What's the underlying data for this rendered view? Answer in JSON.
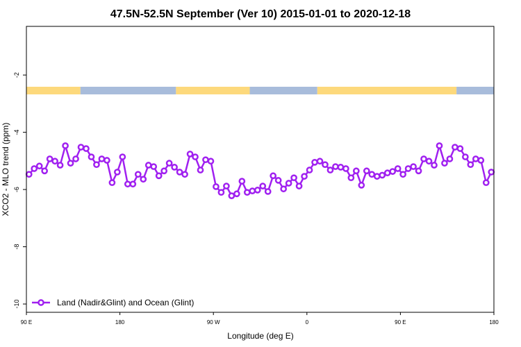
{
  "chart_data": {
    "type": "line",
    "title": "47.5N-52.5N September (Ver 10)   2015-01-01 to 2020-12-18",
    "x_label": "Longitude (deg E)",
    "y_label": "XCO2 - MLO trend (ppm)",
    "xlim": [
      90,
      540
    ],
    "ylim": [
      -10.29,
      -0.3
    ],
    "xticks": [
      {
        "value": 90,
        "label": "90 E"
      },
      {
        "value": 180,
        "label": "180"
      },
      {
        "value": 270,
        "label": "90 W"
      },
      {
        "value": 360,
        "label": "0"
      },
      {
        "value": 450,
        "label": "90 E"
      },
      {
        "value": 540,
        "label": "180"
      }
    ],
    "yticks": [
      -2,
      -4,
      -6,
      -8,
      -10
    ],
    "legend": "bottom-left",
    "surface_band": [
      {
        "from": 90,
        "to": 142,
        "color": "#fdd97c"
      },
      {
        "from": 142,
        "to": 234,
        "color": "#a8bcdb"
      },
      {
        "from": 234,
        "to": 305,
        "color": "#fdd97c"
      },
      {
        "from": 305,
        "to": 370,
        "color": "#a8bcdb"
      },
      {
        "from": 370,
        "to": 504,
        "color": "#fdd97c"
      },
      {
        "from": 504,
        "to": 540,
        "color": "#a8bcdb"
      }
    ],
    "x": [
      92.5,
      97.5,
      102.5,
      107.5,
      112.5,
      117.5,
      122.5,
      127.5,
      132.5,
      137.5,
      142.5,
      147.5,
      152.5,
      157.5,
      162.5,
      167.5,
      172.5,
      177.5,
      182.5,
      187.5,
      192.5,
      197.5,
      202.5,
      207.5,
      212.5,
      217.5,
      222.5,
      227.5,
      232.5,
      237.5,
      242.5,
      247.5,
      252.5,
      257.5,
      262.5,
      267.5,
      272.5,
      277.5,
      282.5,
      287.5,
      292.5,
      297.5,
      302.5,
      307.5,
      312.5,
      317.5,
      322.5,
      327.5,
      332.5,
      337.5,
      342.5,
      347.5,
      352.5,
      357.5,
      362.5,
      367.5,
      372.5,
      377.5,
      382.5,
      387.5,
      392.5,
      397.5,
      402.5,
      407.5,
      412.5,
      417.5,
      422.5,
      427.5,
      432.5,
      437.5,
      442.5,
      447.5,
      452.5,
      457.5,
      462.5,
      467.5,
      472.5,
      477.5,
      482.5,
      487.5,
      492.5,
      497.5,
      502.5,
      507.5,
      512.5,
      517.5,
      522.5,
      527.5,
      532.5,
      537.5
    ],
    "series": [
      {
        "name": "Land (Nadir&Glint) and Ocean (Glint)",
        "color": "#a020f0",
        "values": [
          -5.47,
          -5.27,
          -5.18,
          -5.35,
          -4.93,
          -5.01,
          -5.15,
          -4.47,
          -5.08,
          -4.93,
          -4.52,
          -4.57,
          -4.86,
          -5.13,
          -4.93,
          -4.98,
          -5.76,
          -5.39,
          -4.86,
          -5.81,
          -5.81,
          -5.47,
          -5.64,
          -5.15,
          -5.2,
          -5.52,
          -5.35,
          -5.08,
          -5.22,
          -5.39,
          -5.47,
          -4.76,
          -4.86,
          -5.32,
          -4.96,
          -5.01,
          -5.9,
          -6.1,
          -5.88,
          -6.22,
          -6.15,
          -5.71,
          -6.1,
          -6.05,
          -6.02,
          -5.88,
          -6.07,
          -5.52,
          -5.68,
          -5.98,
          -5.78,
          -5.59,
          -5.88,
          -5.54,
          -5.32,
          -5.05,
          -5.01,
          -5.13,
          -5.32,
          -5.2,
          -5.22,
          -5.27,
          -5.59,
          -5.35,
          -5.85,
          -5.35,
          -5.47,
          -5.54,
          -5.5,
          -5.42,
          -5.37,
          -5.27,
          -5.47,
          -5.27,
          -5.2,
          -5.35,
          -4.93,
          -5.01,
          -5.15,
          -4.47,
          -5.08,
          -4.93,
          -4.52,
          -4.57,
          -4.86,
          -5.13,
          -4.93,
          -4.98,
          -5.76,
          -5.39
        ]
      }
    ]
  }
}
